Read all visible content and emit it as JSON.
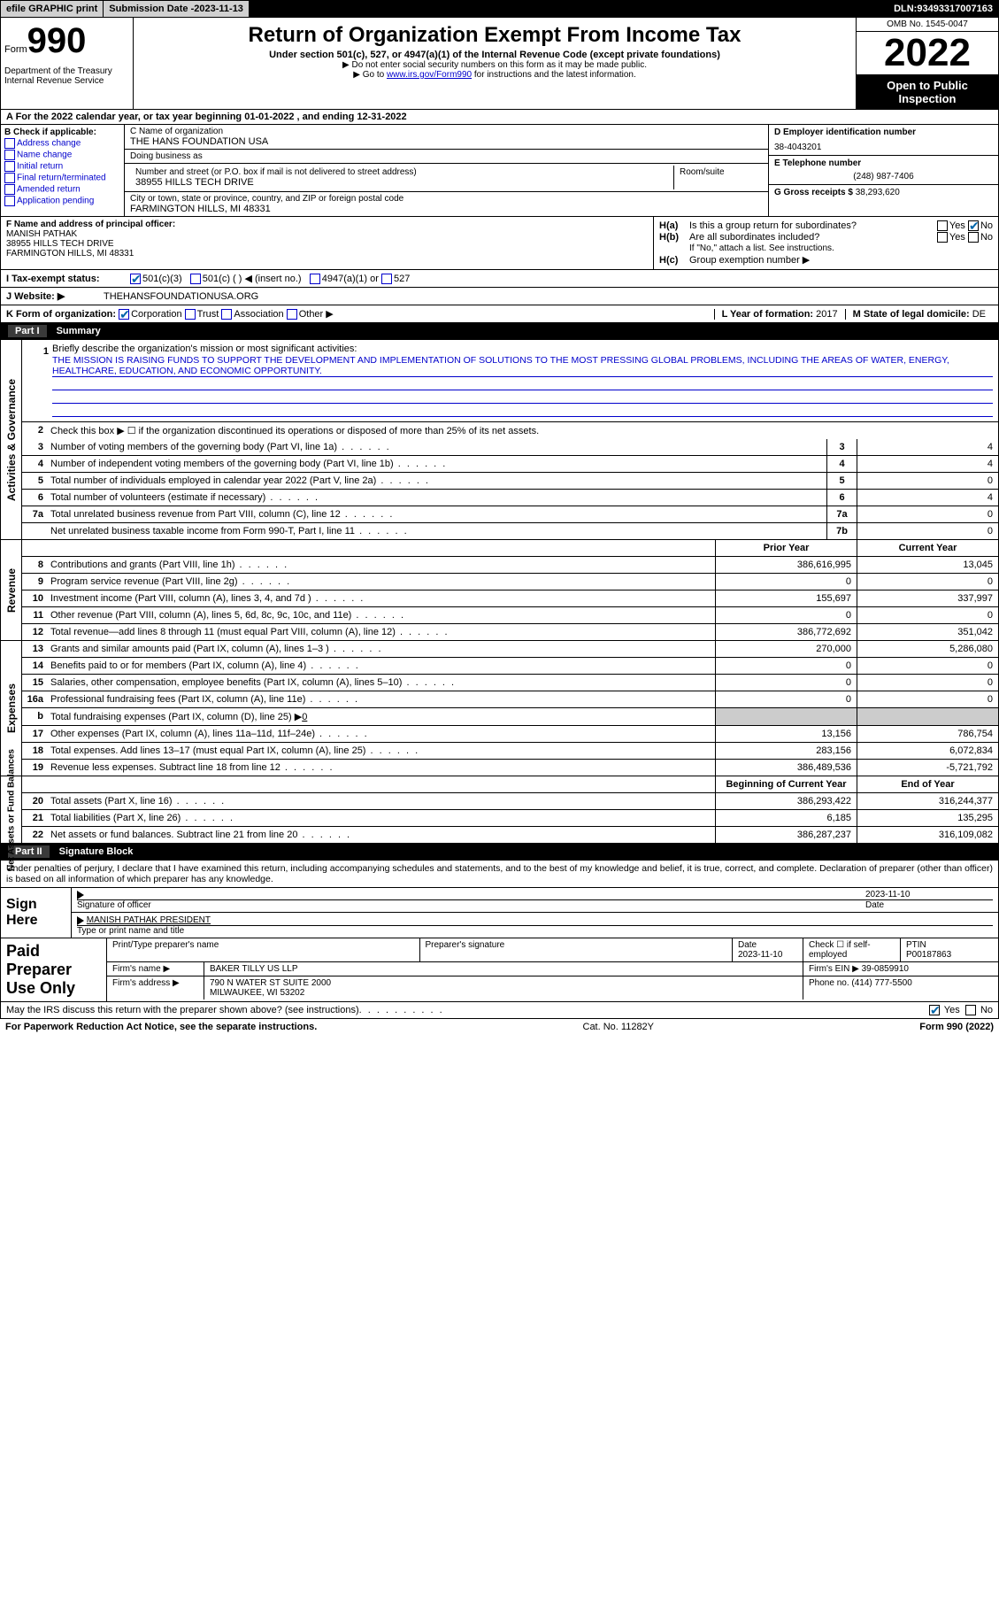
{
  "topbar": {
    "efile": "efile GRAPHIC print",
    "submission_label": "Submission Date - ",
    "submission_date": "2023-11-13",
    "dln_label": "DLN: ",
    "dln": "93493317007163"
  },
  "header": {
    "form_word": "Form",
    "form_num": "990",
    "dept": "Department of the Treasury\nInternal Revenue Service",
    "title": "Return of Organization Exempt From Income Tax",
    "sub1": "Under section 501(c), 527, or 4947(a)(1) of the Internal Revenue Code (except private foundations)",
    "sub2": "▶ Do not enter social security numbers on this form as it may be made public.",
    "sub3_a": "▶ Go to ",
    "sub3_link": "www.irs.gov/Form990",
    "sub3_b": " for instructions and the latest information.",
    "omb": "OMB No. 1545-0047",
    "year": "2022",
    "inspect": "Open to Public Inspection"
  },
  "row_a": {
    "text_a": "A For the 2022 calendar year, or tax year beginning ",
    "begin": "01-01-2022",
    "text_b": "  , and ending ",
    "end": "12-31-2022"
  },
  "col_b": {
    "label": "B Check if applicable:",
    "opts": [
      "Address change",
      "Name change",
      "Initial return",
      "Final return/terminated",
      "Amended return",
      "Application pending"
    ]
  },
  "col_c": {
    "name_lbl": "C Name of organization",
    "name": "THE HANS FOUNDATION USA",
    "dba_lbl": "Doing business as",
    "dba": "",
    "addr_lbl": "Number and street (or P.O. box if mail is not delivered to street address)",
    "room_lbl": "Room/suite",
    "addr": "38955 HILLS TECH DRIVE",
    "city_lbl": "City or town, state or province, country, and ZIP or foreign postal code",
    "city": "FARMINGTON HILLS, MI  48331"
  },
  "col_d": {
    "d_lbl": "D Employer identification number",
    "d_val": "38-4043201",
    "e_lbl": "E Telephone number",
    "e_val": "(248) 987-7406",
    "g_lbl": "G Gross receipts $ ",
    "g_val": "38,293,620"
  },
  "col_f": {
    "lbl": "F Name and address of principal officer:",
    "name": "MANISH PATHAK",
    "addr1": "38955 HILLS TECH DRIVE",
    "addr2": "FARMINGTON HILLS, MI  48331"
  },
  "col_h": {
    "a_tag": "H(a)",
    "a_q": "Is this a group return for subordinates?",
    "a_no": true,
    "b_tag": "H(b)",
    "b_q": "Are all subordinates included?",
    "b_note": "If \"No,\" attach a list. See instructions.",
    "c_tag": "H(c)",
    "c_q": "Group exemption number ▶"
  },
  "row_i": {
    "lbl": "I   Tax-exempt status:",
    "o1": "501(c)(3)",
    "o2": "501(c) (  ) ◀ (insert no.)",
    "o3": "4947(a)(1) or",
    "o4": "527"
  },
  "row_j": {
    "lbl": "J   Website: ▶",
    "val": "THEHANSFOUNDATIONUSA.ORG"
  },
  "row_k": {
    "lbl": "K Form of organization:",
    "o1": "Corporation",
    "o2": "Trust",
    "o3": "Association",
    "o4": "Other ▶",
    "l_lbl": "L Year of formation: ",
    "l_val": "2017",
    "m_lbl": "M State of legal domicile: ",
    "m_val": "DE"
  },
  "part1": {
    "num": "Part I",
    "title": "Summary"
  },
  "gov": {
    "vtab": "Activities & Governance",
    "q1_lbl": "Briefly describe the organization's mission or most significant activities:",
    "q1_txt": "THE MISSION IS RAISING FUNDS TO SUPPORT THE DEVELOPMENT AND IMPLEMENTATION OF SOLUTIONS TO THE MOST PRESSING GLOBAL PROBLEMS, INCLUDING THE AREAS OF WATER, ENERGY, HEALTHCARE, EDUCATION, AND ECONOMIC OPPORTUNITY.",
    "q2": "Check this box ▶ ☐  if the organization discontinued its operations or disposed of more than 25% of its net assets.",
    "rows": [
      {
        "n": "3",
        "t": "Number of voting members of the governing body (Part VI, line 1a)",
        "box": "3",
        "v": "4"
      },
      {
        "n": "4",
        "t": "Number of independent voting members of the governing body (Part VI, line 1b)",
        "box": "4",
        "v": "4"
      },
      {
        "n": "5",
        "t": "Total number of individuals employed in calendar year 2022 (Part V, line 2a)",
        "box": "5",
        "v": "0"
      },
      {
        "n": "6",
        "t": "Total number of volunteers (estimate if necessary)",
        "box": "6",
        "v": "4"
      },
      {
        "n": "7a",
        "t": "Total unrelated business revenue from Part VIII, column (C), line 12",
        "box": "7a",
        "v": "0"
      },
      {
        "n": "",
        "t": "Net unrelated business taxable income from Form 990-T, Part I, line 11",
        "box": "7b",
        "v": "0"
      }
    ]
  },
  "rev": {
    "vtab": "Revenue",
    "hdr_prior": "Prior Year",
    "hdr_curr": "Current Year",
    "rows": [
      {
        "n": "8",
        "t": "Contributions and grants (Part VIII, line 1h)",
        "p": "386,616,995",
        "c": "13,045"
      },
      {
        "n": "9",
        "t": "Program service revenue (Part VIII, line 2g)",
        "p": "0",
        "c": "0"
      },
      {
        "n": "10",
        "t": "Investment income (Part VIII, column (A), lines 3, 4, and 7d )",
        "p": "155,697",
        "c": "337,997"
      },
      {
        "n": "11",
        "t": "Other revenue (Part VIII, column (A), lines 5, 6d, 8c, 9c, 10c, and 11e)",
        "p": "0",
        "c": "0"
      },
      {
        "n": "12",
        "t": "Total revenue—add lines 8 through 11 (must equal Part VIII, column (A), line 12)",
        "p": "386,772,692",
        "c": "351,042"
      }
    ]
  },
  "exp": {
    "vtab": "Expenses",
    "rows": [
      {
        "n": "13",
        "t": "Grants and similar amounts paid (Part IX, column (A), lines 1–3 )",
        "p": "270,000",
        "c": "5,286,080"
      },
      {
        "n": "14",
        "t": "Benefits paid to or for members (Part IX, column (A), line 4)",
        "p": "0",
        "c": "0"
      },
      {
        "n": "15",
        "t": "Salaries, other compensation, employee benefits (Part IX, column (A), lines 5–10)",
        "p": "0",
        "c": "0"
      },
      {
        "n": "16a",
        "t": "Professional fundraising fees (Part IX, column (A), line 11e)",
        "p": "0",
        "c": "0"
      },
      {
        "n": "b",
        "t": "Total fundraising expenses (Part IX, column (D), line 25) ▶",
        "u": "0",
        "shade": true
      },
      {
        "n": "17",
        "t": "Other expenses (Part IX, column (A), lines 11a–11d, 11f–24e)",
        "p": "13,156",
        "c": "786,754"
      },
      {
        "n": "18",
        "t": "Total expenses. Add lines 13–17 (must equal Part IX, column (A), line 25)",
        "p": "283,156",
        "c": "6,072,834"
      },
      {
        "n": "19",
        "t": "Revenue less expenses. Subtract line 18 from line 12",
        "p": "386,489,536",
        "c": "-5,721,792"
      }
    ]
  },
  "net": {
    "vtab": "Net Assets or Fund Balances",
    "hdr_beg": "Beginning of Current Year",
    "hdr_end": "End of Year",
    "rows": [
      {
        "n": "20",
        "t": "Total assets (Part X, line 16)",
        "p": "386,293,422",
        "c": "316,244,377"
      },
      {
        "n": "21",
        "t": "Total liabilities (Part X, line 26)",
        "p": "6,185",
        "c": "135,295"
      },
      {
        "n": "22",
        "t": "Net assets or fund balances. Subtract line 21 from line 20",
        "p": "386,287,237",
        "c": "316,109,082"
      }
    ]
  },
  "part2": {
    "num": "Part II",
    "title": "Signature Block"
  },
  "sig": {
    "intro": "Under penalties of perjury, I declare that I have examined this return, including accompanying schedules and statements, and to the best of my knowledge and belief, it is true, correct, and complete. Declaration of preparer (other than officer) is based on all information of which preparer has any knowledge.",
    "sign_here": "Sign Here",
    "sig_lbl": "Signature of officer",
    "date_lbl": "Date",
    "date_val": "2023-11-10",
    "name_val": "MANISH PATHAK  PRESIDENT",
    "name_lbl": "Type or print name and title"
  },
  "prep": {
    "left": "Paid Preparer Use Only",
    "r1": {
      "a": "Print/Type preparer's name",
      "b": "Preparer's signature",
      "c_lbl": "Date",
      "c": "2023-11-10",
      "d": "Check ☐ if self-employed",
      "e_lbl": "PTIN",
      "e": "P00187863"
    },
    "r2": {
      "a": "Firm's name    ▶",
      "b": "BAKER TILLY US LLP",
      "c": "Firm's EIN ▶ 39-0859910"
    },
    "r3": {
      "a": "Firm's address ▶",
      "b": "790 N WATER ST SUITE 2000",
      "c": "Phone no. (414) 777-5500"
    },
    "r3b": "MILWAUKEE, WI  53202"
  },
  "may": {
    "q": "May the IRS discuss this return with the preparer shown above? (see instructions)",
    "yes": "Yes",
    "no": "No",
    "checked_yes": true
  },
  "footer": {
    "a": "For Paperwork Reduction Act Notice, see the separate instructions.",
    "b": "Cat. No. 11282Y",
    "c": "Form 990 (2022)"
  }
}
